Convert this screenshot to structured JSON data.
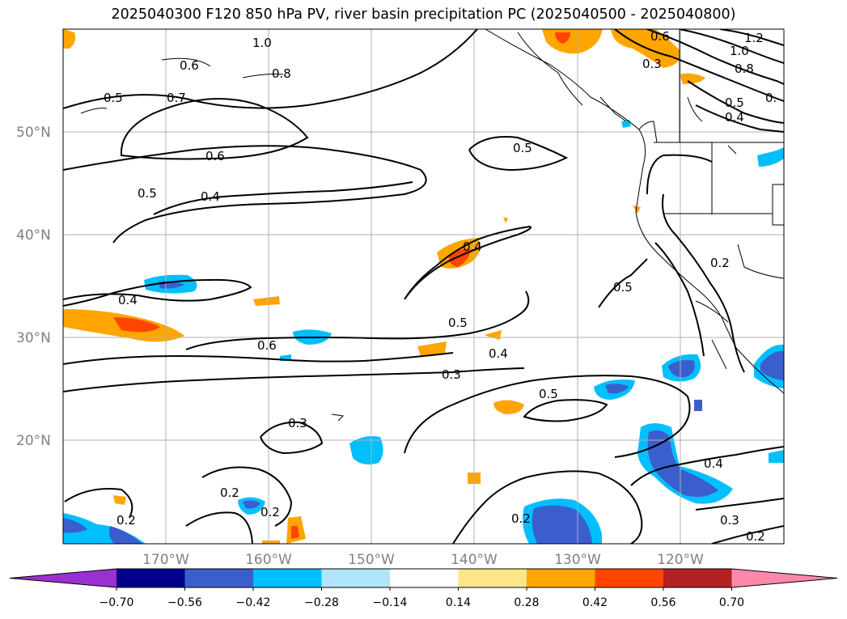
{
  "title": "2025040300 F120 850 hPa PV, river basin precipitation PC (2025040500 - 2025040800)",
  "map": {
    "lat_labels": [
      "50°N",
      "40°N",
      "30°N",
      "20°N"
    ],
    "lon_labels": [
      "170°W",
      "160°W",
      "150°W",
      "140°W",
      "130°W",
      "120°W"
    ],
    "contour_labels": [
      "1.0",
      "0.8",
      "0.6",
      "0.7",
      "0.5",
      "0.6",
      "0.5",
      "0.4",
      "0.5",
      "0.4",
      "0.4",
      "0.6",
      "0.5",
      "0.4",
      "0.3",
      "0.5",
      "0.3",
      "0.2",
      "0.2",
      "0.2",
      "0.2",
      "0.4",
      "0.3",
      "0.2",
      "0.5",
      "0.2",
      "1.2",
      "1.0",
      "0.8",
      "0.6",
      "0.3",
      "0.5",
      "0.4",
      "0."
    ]
  },
  "colorbar": {
    "levels": [
      "−0.70",
      "−0.56",
      "−0.42",
      "−0.28",
      "−0.14",
      "0.14",
      "0.28",
      "0.42",
      "0.56",
      "0.70"
    ],
    "colors": [
      "#9b30d0",
      "#00008b",
      "#3a5fcd",
      "#00bfff",
      "#afe4fa",
      "#ffffff",
      "#fde68a",
      "#ffa500",
      "#ff4500",
      "#b22222",
      "#ff88aa"
    ]
  }
}
